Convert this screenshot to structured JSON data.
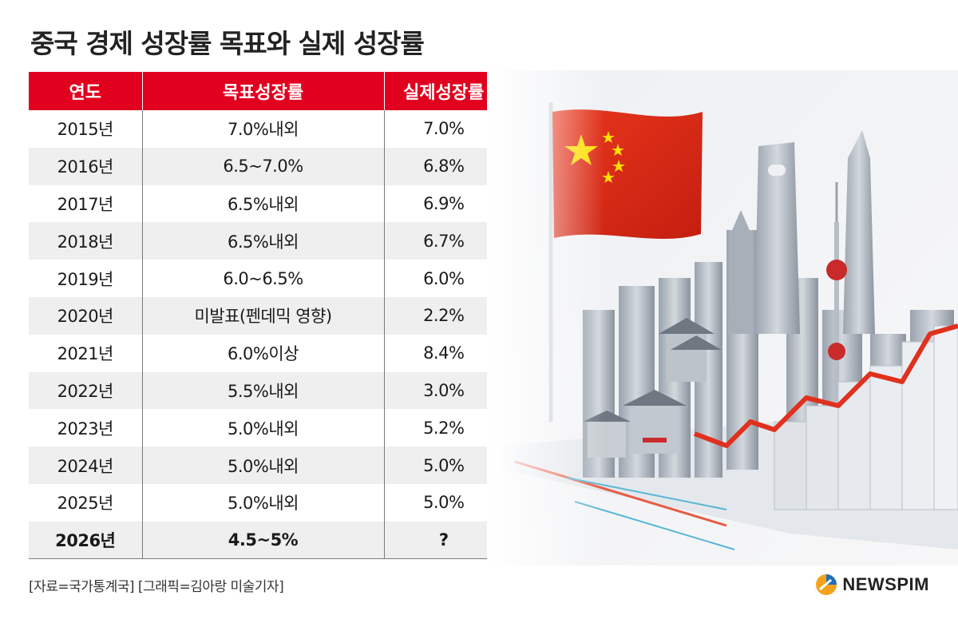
{
  "title": "중국 경제 성장률 목표와 실제 성장률",
  "chart_data": {
    "type": "table",
    "columns": [
      "연도",
      "목표성장률",
      "실제성장률"
    ],
    "rows": [
      {
        "year": "2015년",
        "target": "7.0%내외",
        "actual": "7.0%"
      },
      {
        "year": "2016년",
        "target": "6.5~7.0%",
        "actual": "6.8%"
      },
      {
        "year": "2017년",
        "target": "6.5%내외",
        "actual": "6.9%"
      },
      {
        "year": "2018년",
        "target": "6.5%내외",
        "actual": "6.7%"
      },
      {
        "year": "2019년",
        "target": "6.0~6.5%",
        "actual": "6.0%"
      },
      {
        "year": "2020년",
        "target": "미발표(펜데믹 영향)",
        "actual": "2.2%"
      },
      {
        "year": "2021년",
        "target": "6.0%이상",
        "actual": "8.4%"
      },
      {
        "year": "2022년",
        "target": "5.5%내외",
        "actual": "3.0%"
      },
      {
        "year": "2023년",
        "target": "5.0%내외",
        "actual": "5.2%"
      },
      {
        "year": "2024년",
        "target": "5.0%내외",
        "actual": "5.0%"
      },
      {
        "year": "2025년",
        "target": "5.0%내외",
        "actual": "5.0%"
      },
      {
        "year": "2026년",
        "target": "4.5~5%",
        "actual": "?",
        "emphasis": true
      }
    ]
  },
  "source": "[자료=국가통계국] [그래픽=김아랑 미술기자]",
  "brand": "NEWSPIM",
  "colors": {
    "header_red": "#e1001e",
    "row_alt": "#efefef",
    "flag_red": "#de2910",
    "flag_star": "#ffde00"
  }
}
